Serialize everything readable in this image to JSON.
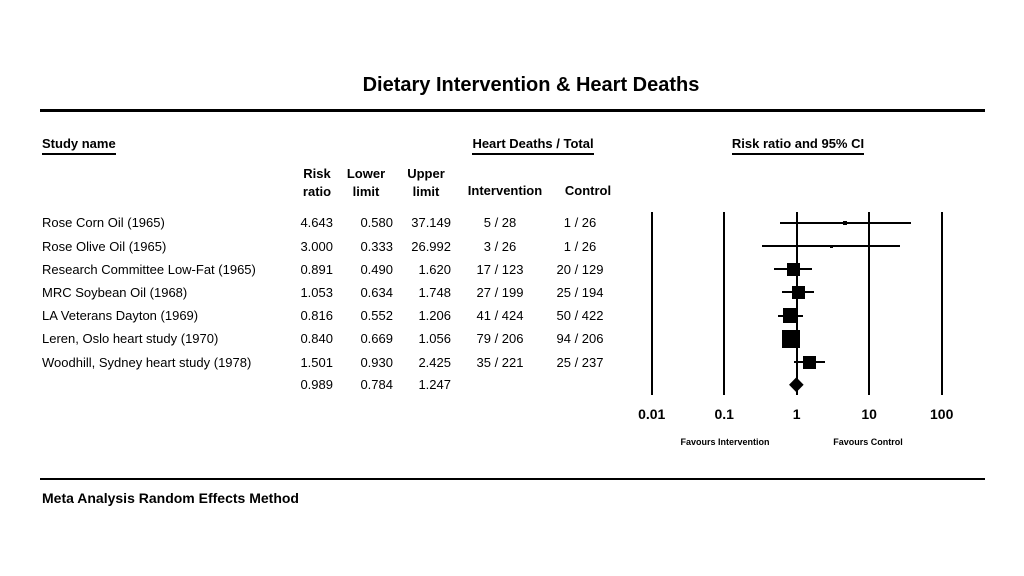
{
  "title": "Dietary Intervention & Heart Deaths",
  "footer": "Meta Analysis Random Effects Method",
  "table": {
    "study_header": "Study name",
    "group_header": "Heart Deaths / Total",
    "plot_header": "Risk ratio and 95% CI",
    "sub_risk_ratio": "Risk\nratio",
    "sub_lower": "Lower\nlimit",
    "sub_upper": "Upper\nlimit",
    "sub_intervention": "Intervention",
    "sub_control": "Control"
  },
  "chart_data": {
    "type": "forest",
    "x_axis": {
      "scale": "log",
      "ticks": [
        0.01,
        0.1,
        1,
        10,
        100
      ],
      "labels": [
        "0.01",
        "0.1",
        "1",
        "10",
        "100"
      ]
    },
    "favours_left": "Favours Intervention",
    "favours_right": "Favours Control",
    "studies": [
      {
        "name": "Rose Corn Oil (1965)",
        "risk_ratio": "4.643",
        "lower": "0.580",
        "upper": "37.149",
        "intervention_deaths": "5 / 28",
        "control_deaths": "1 / 26",
        "marker_size": 4
      },
      {
        "name": "Rose Olive Oil (1965)",
        "risk_ratio": "3.000",
        "lower": "0.333",
        "upper": "26.992",
        "intervention_deaths": "3 / 26",
        "control_deaths": "1 / 26",
        "marker_size": 3
      },
      {
        "name": "Research Committee Low-Fat (1965)",
        "risk_ratio": "0.891",
        "lower": "0.490",
        "upper": "1.620",
        "intervention_deaths": "17 / 123",
        "control_deaths": "20 / 129",
        "marker_size": 13
      },
      {
        "name": "MRC Soybean Oil (1968)",
        "risk_ratio": "1.053",
        "lower": "0.634",
        "upper": "1.748",
        "intervention_deaths": "27 / 199",
        "control_deaths": "25 / 194",
        "marker_size": 13
      },
      {
        "name": "LA Veterans Dayton (1969)",
        "risk_ratio": "0.816",
        "lower": "0.552",
        "upper": "1.206",
        "intervention_deaths": "41 / 424",
        "control_deaths": "50 / 422",
        "marker_size": 15
      },
      {
        "name": "Leren, Oslo heart study (1970)",
        "risk_ratio": "0.840",
        "lower": "0.669",
        "upper": "1.056",
        "intervention_deaths": "79 / 206",
        "control_deaths": "94 / 206",
        "marker_size": 18
      },
      {
        "name": "Woodhill, Sydney heart study (1978)",
        "risk_ratio": "1.501",
        "lower": "0.930",
        "upper": "2.425",
        "intervention_deaths": "35 / 221",
        "control_deaths": "25 / 237",
        "marker_size": 13
      }
    ],
    "summary": {
      "risk_ratio": "0.989",
      "lower": "0.784",
      "upper": "1.247"
    }
  },
  "colors": {
    "ink": "#000000",
    "background": "#ffffff"
  }
}
